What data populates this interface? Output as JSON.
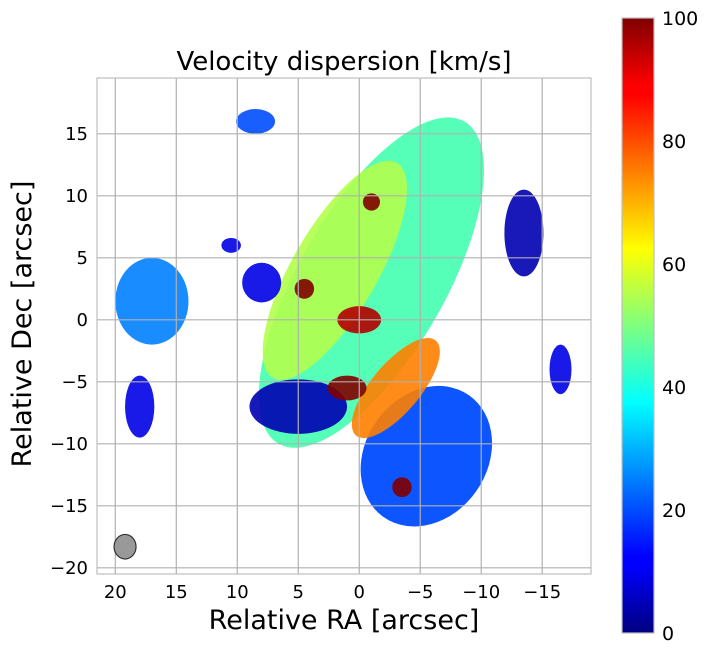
{
  "chart_data": {
    "type": "heatmap",
    "title": "Velocity dispersion [km/s]",
    "xlabel": "Relative RA [arcsec]",
    "ylabel": "Relative Dec [arcsec]",
    "xlim": [
      21.5,
      -19
    ],
    "ylim": [
      -20.5,
      19.5
    ],
    "x_ticks": [
      20,
      15,
      10,
      5,
      0,
      -5,
      -10,
      -15
    ],
    "x_tick_labels": [
      "20",
      "15",
      "10",
      "5",
      "0",
      "−5",
      "−10",
      "−15"
    ],
    "y_ticks": [
      15,
      10,
      5,
      0,
      -5,
      -10,
      -15,
      -20
    ],
    "y_tick_labels": [
      "15",
      "10",
      "5",
      "0",
      "−5",
      "−10",
      "−15",
      "−20"
    ],
    "grid": true,
    "colorbar": {
      "label_min": 0,
      "label_max": 100,
      "ticks": [
        0,
        20,
        40,
        60,
        80,
        100
      ],
      "tick_labels": [
        "0",
        "20",
        "40",
        "60",
        "80",
        "100"
      ],
      "colormap": "jet"
    },
    "beam": {
      "x": 19.2,
      "y": -18.3,
      "diameter_arcsec": 1.8,
      "color": "#999999"
    },
    "regions": [
      {
        "kind": "ellipse",
        "cx": -1.0,
        "cy": 3.0,
        "rx": 6.0,
        "ry": 15.0,
        "angle": 30,
        "value": 45
      },
      {
        "kind": "ellipse",
        "cx": -5.5,
        "cy": -11.0,
        "rx": 5.0,
        "ry": 6.0,
        "angle": 35,
        "value": 20
      },
      {
        "kind": "ellipse",
        "cx": 2.0,
        "cy": 4.0,
        "rx": 3.5,
        "ry": 10.0,
        "angle": 30,
        "value": 55
      },
      {
        "kind": "ellipse",
        "cx": -3.0,
        "cy": -5.5,
        "rx": 2.0,
        "ry": 5.0,
        "angle": 40,
        "value": 75
      },
      {
        "kind": "ellipse",
        "cx": 0.0,
        "cy": 0.0,
        "rx": 1.8,
        "ry": 1.1,
        "angle": 0,
        "value": 95
      },
      {
        "kind": "ellipse",
        "cx": 17.0,
        "cy": 1.5,
        "rx": 3.0,
        "ry": 3.5,
        "angle": 0,
        "value": 25
      },
      {
        "kind": "ellipse",
        "cx": 8.0,
        "cy": 3.0,
        "rx": 1.6,
        "ry": 1.6,
        "angle": 0,
        "value": 10
      },
      {
        "kind": "ellipse",
        "cx": 8.5,
        "cy": 16.0,
        "rx": 1.6,
        "ry": 1.0,
        "angle": 0,
        "value": 20
      },
      {
        "kind": "ellipse",
        "cx": 5.0,
        "cy": -7.0,
        "rx": 4.0,
        "ry": 2.2,
        "angle": 0,
        "value": 5
      },
      {
        "kind": "ellipse",
        "cx": -13.5,
        "cy": 7.0,
        "rx": 1.6,
        "ry": 3.5,
        "angle": 0,
        "value": 5
      },
      {
        "kind": "ellipse",
        "cx": -16.5,
        "cy": -4.0,
        "rx": 0.9,
        "ry": 2.0,
        "angle": 0,
        "value": 10
      },
      {
        "kind": "ellipse",
        "cx": 18.0,
        "cy": -7.0,
        "rx": 1.2,
        "ry": 2.5,
        "angle": 0,
        "value": 10
      },
      {
        "kind": "ellipse",
        "cx": 1.0,
        "cy": -5.5,
        "rx": 1.6,
        "ry": 1.0,
        "angle": 0,
        "value": 100
      },
      {
        "kind": "ellipse",
        "cx": 4.5,
        "cy": 2.5,
        "rx": 0.8,
        "ry": 0.8,
        "angle": 0,
        "value": 100
      },
      {
        "kind": "ellipse",
        "cx": -1.0,
        "cy": 9.5,
        "rx": 0.7,
        "ry": 0.7,
        "angle": 0,
        "value": 100
      },
      {
        "kind": "ellipse",
        "cx": -3.5,
        "cy": -13.5,
        "rx": 0.8,
        "ry": 0.8,
        "angle": 0,
        "value": 100
      },
      {
        "kind": "ellipse",
        "cx": 10.5,
        "cy": 6.0,
        "rx": 0.8,
        "ry": 0.6,
        "angle": 0,
        "value": 10
      }
    ]
  }
}
